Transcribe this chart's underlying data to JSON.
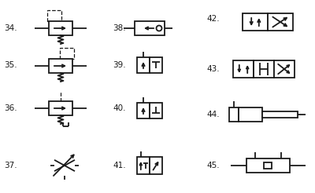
{
  "background": "#ffffff",
  "line_color": "#1a1a1a",
  "lw": 1.3,
  "label_fs": 7.5
}
